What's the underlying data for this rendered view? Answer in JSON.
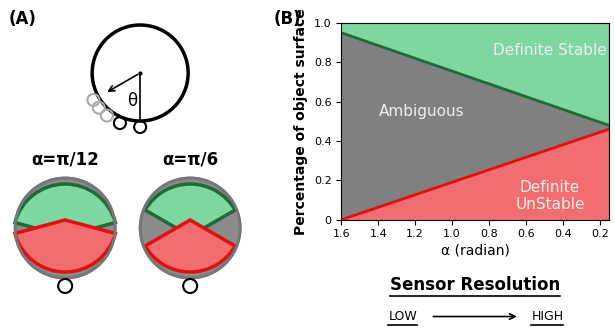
{
  "panel_a": {
    "label": "(A)",
    "angle_label": "θ",
    "circles": [
      {
        "label": "α=π/12"
      },
      {
        "label": "α=π/6"
      }
    ]
  },
  "chart_data": {
    "type": "area",
    "panel_label": "(B)",
    "stacked": true,
    "x": [
      1.6,
      0.15
    ],
    "series": [
      {
        "name": "Definite UnStable",
        "color": "#f26d6d",
        "values": [
          0.0,
          0.46
        ]
      },
      {
        "name": "Ambiguous",
        "color": "#808080",
        "values": [
          0.95,
          0.02
        ]
      },
      {
        "name": "Definite Stable",
        "color": "#7ed6a0",
        "values": [
          0.05,
          0.52
        ]
      }
    ],
    "xlim": [
      1.6,
      0.15
    ],
    "xticks": [
      1.6,
      1.4,
      1.2,
      1.0,
      0.8,
      0.6,
      0.4,
      0.2
    ],
    "ylim": [
      0,
      1
    ],
    "yticks": [
      0,
      0.2,
      0.4,
      0.6,
      0.8,
      {
        "value": 1,
        "label": "1.0"
      }
    ],
    "x_label": "α (radian)",
    "y_label": "Percentage of object surface",
    "subtitle": "Sensor Resolution",
    "subtitle_low": "LOW",
    "subtitle_high": "HIGH",
    "grid": false
  }
}
